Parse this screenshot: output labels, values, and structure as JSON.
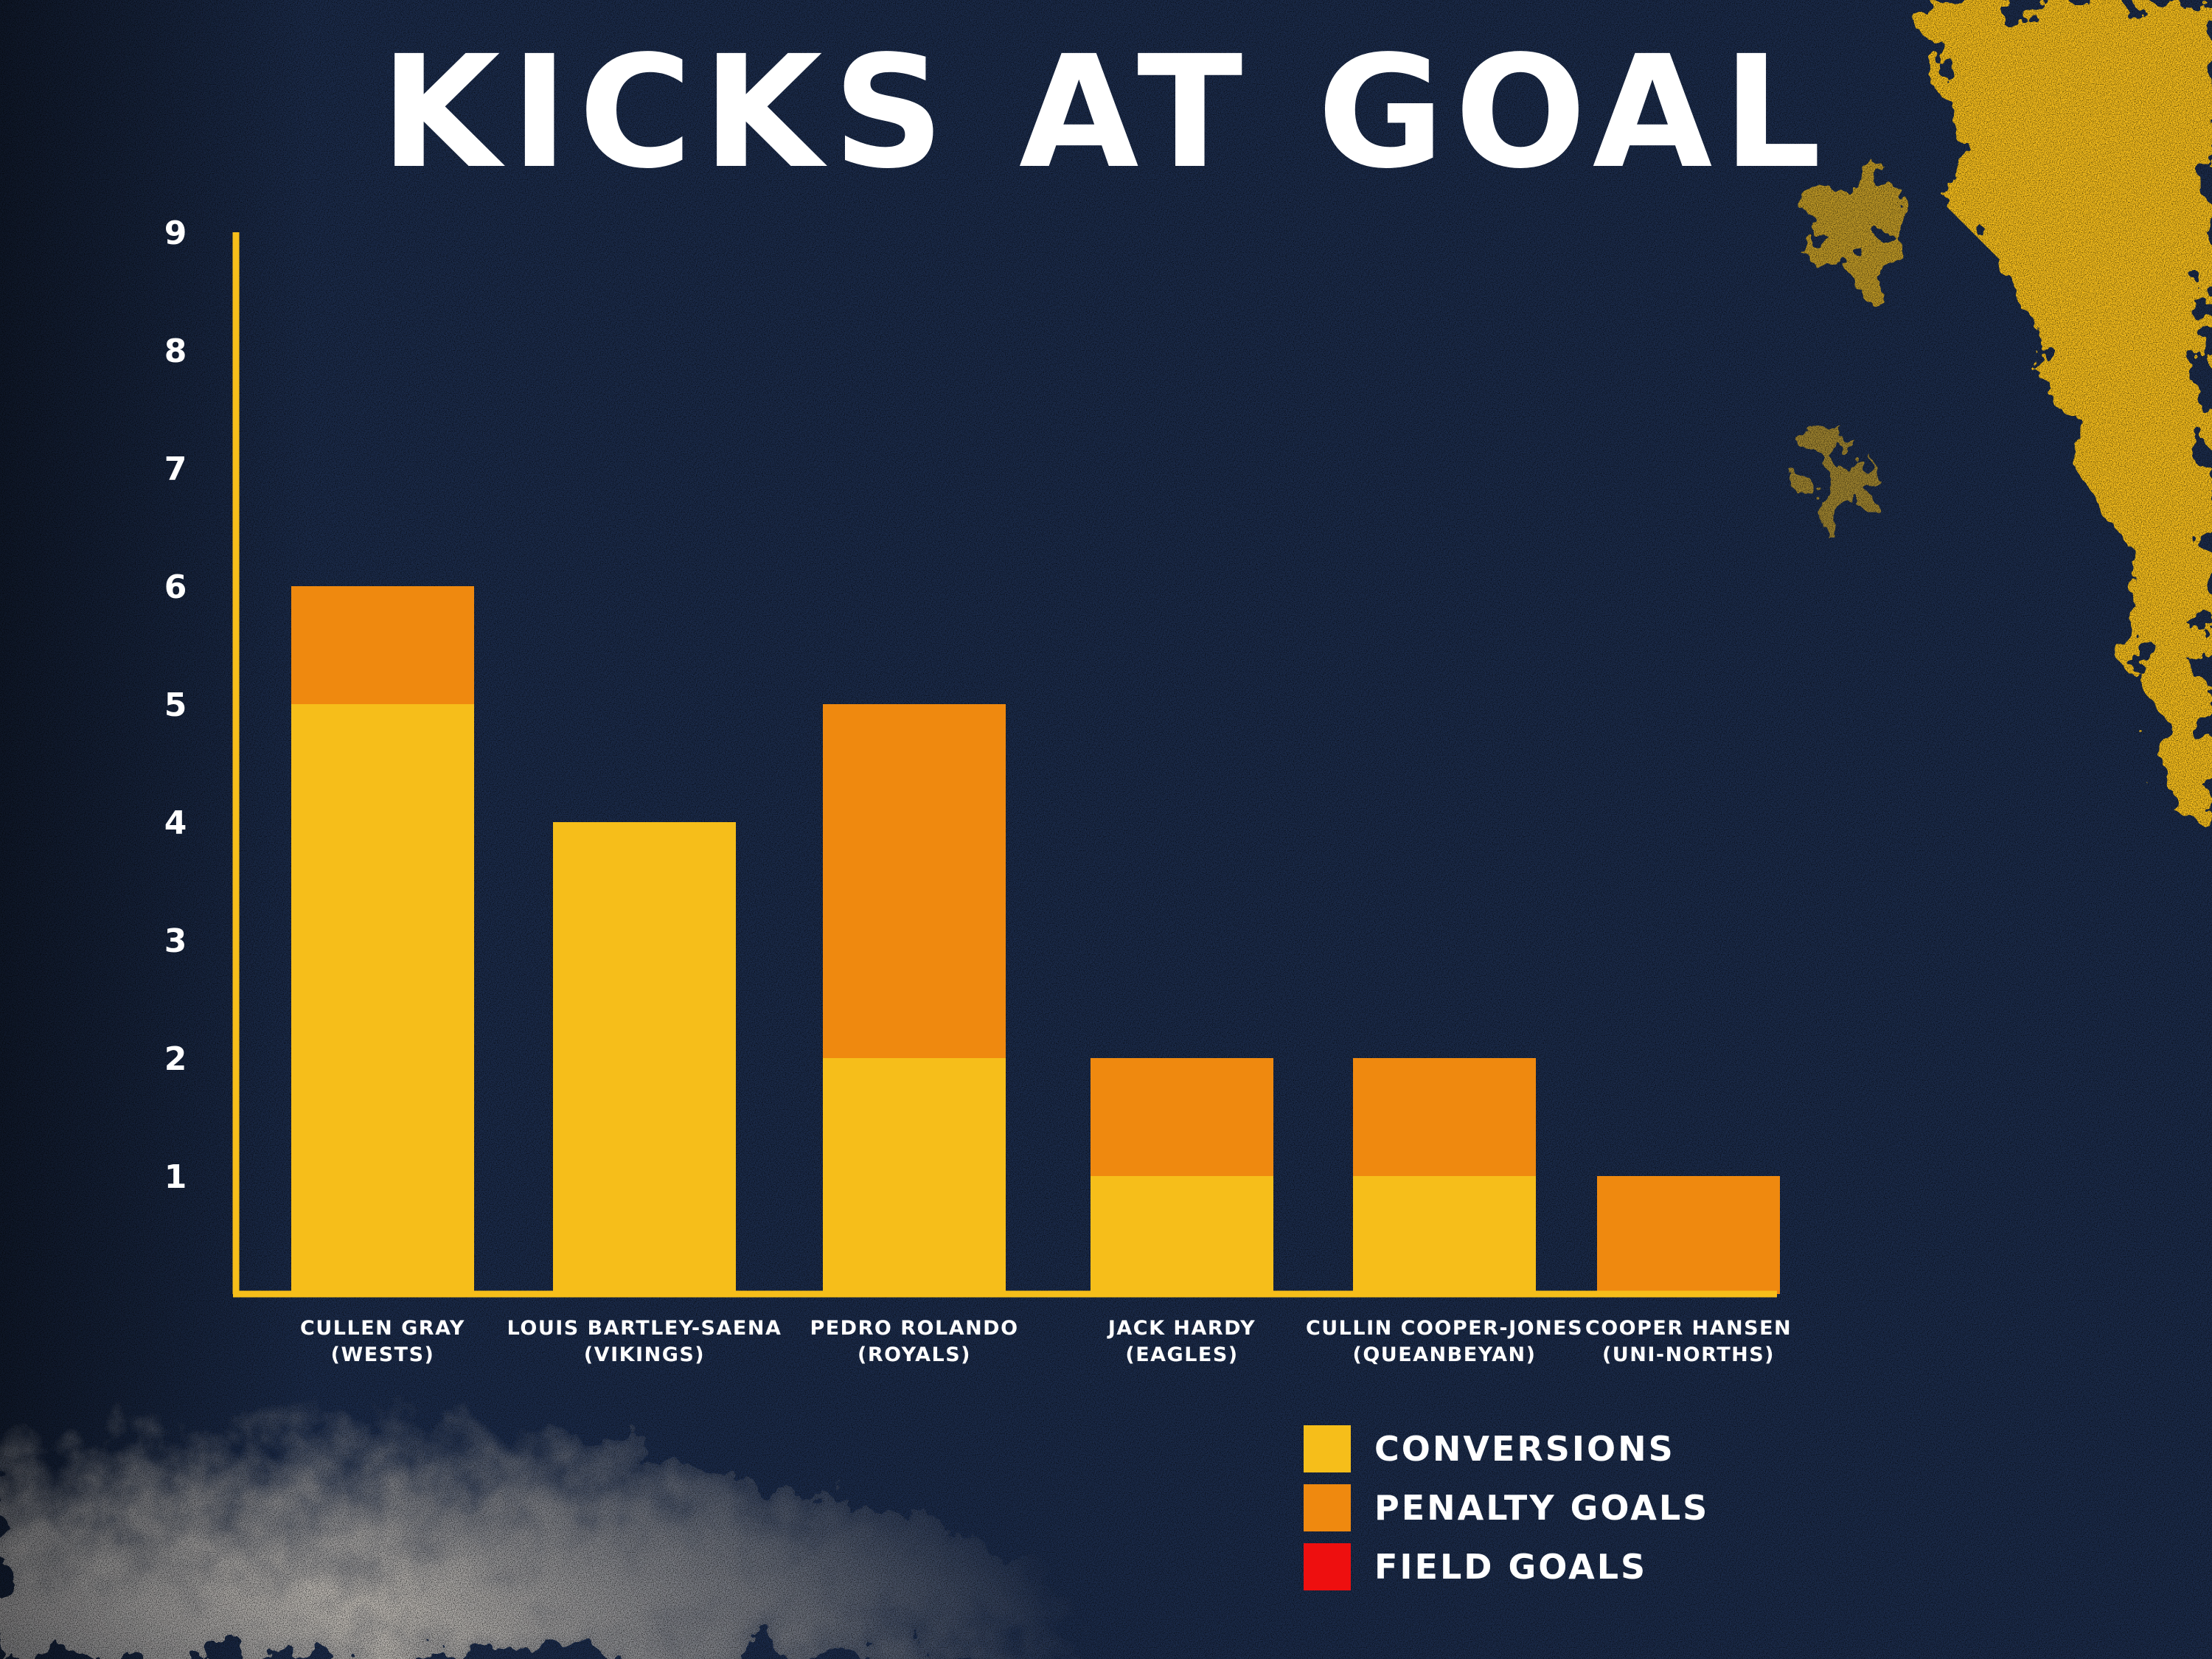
{
  "page": {
    "title": "KICKS AT GOAL"
  },
  "chart_data": {
    "type": "bar",
    "stacked": true,
    "title": "KICKS AT GOAL",
    "xlabel": "",
    "ylabel": "",
    "ylim": [
      0,
      9
    ],
    "yticks": [
      "1",
      "2",
      "3",
      "4",
      "5",
      "6",
      "7",
      "8",
      "9"
    ],
    "grid": false,
    "legend_position": "bottom-right",
    "categories": [
      [
        "CULLEN GRAY",
        "(WESTS)"
      ],
      [
        "LOUIS BARTLEY-SAENA",
        "(VIKINGS)"
      ],
      [
        "PEDRO ROLANDO",
        "(ROYALS)"
      ],
      [
        "JACK HARDY",
        "(EAGLES)"
      ],
      [
        "CULLIN COOPER-JONES",
        "(QUEANBEYAN)"
      ],
      [
        "COOPER HANSEN",
        "(UNI-NORTHS)"
      ]
    ],
    "series": [
      {
        "name": "CONVERSIONS",
        "color": "#f6be1a",
        "values": [
          5,
          4,
          2,
          1,
          1,
          0
        ]
      },
      {
        "name": "PENALTY GOALS",
        "color": "#ef890f",
        "values": [
          1,
          0,
          3,
          1,
          1,
          1
        ]
      },
      {
        "name": "FIELD GOALS",
        "color": "#ee0f0f",
        "values": [
          0,
          0,
          0,
          0,
          0,
          0
        ]
      }
    ],
    "axis_color": "#f6be1a"
  }
}
